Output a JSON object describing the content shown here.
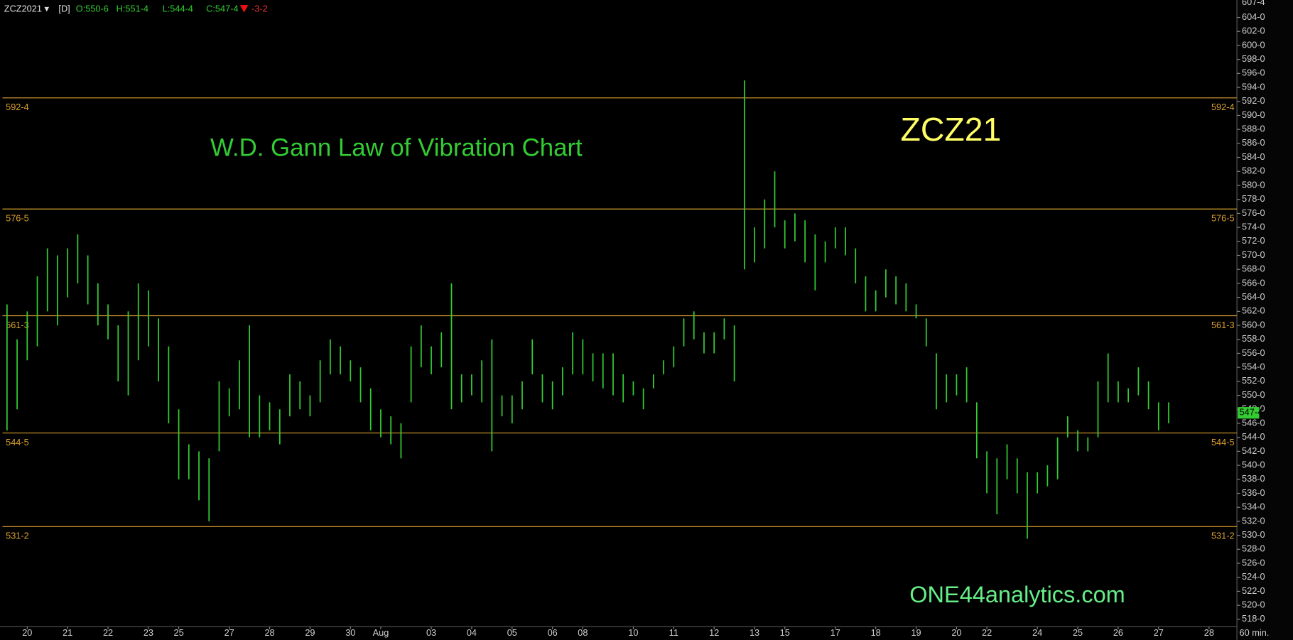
{
  "chart_data": {
    "type": "hlbar",
    "header": {
      "symbol": "ZCZ2021 ▾",
      "interval": "[D]",
      "open": "O:550-6",
      "high": "H:551-4",
      "low": "L:544-4",
      "close": "C:547-4",
      "change": "-3-2"
    },
    "title": "W.D. Gann Law of Vibration Chart",
    "symbol_label": "ZCZ21",
    "watermark": "ONE44analytics.com",
    "timeframe": "60 min.",
    "color": "#33cc33",
    "level_color": "#d9a030",
    "categories": [
      null,
      null,
      "20",
      null,
      null,
      null,
      "21",
      null,
      null,
      null,
      "22",
      null,
      null,
      null,
      "23",
      null,
      null,
      "25",
      null,
      null,
      null,
      null,
      "27",
      null,
      null,
      null,
      "28",
      null,
      null,
      null,
      "29",
      null,
      null,
      null,
      "30",
      null,
      null,
      "Aug",
      null,
      null,
      null,
      null,
      "03",
      null,
      null,
      null,
      "04",
      null,
      null,
      null,
      "05",
      null,
      null,
      null,
      "06",
      null,
      null,
      "08",
      null,
      null,
      null,
      null,
      "10",
      null,
      null,
      null,
      "11",
      null,
      null,
      null,
      "12",
      null,
      null,
      null,
      "13",
      null,
      null,
      "15",
      null,
      null,
      null,
      null,
      "17",
      null,
      null,
      null,
      "18",
      null,
      null,
      null,
      "19",
      null,
      null,
      null,
      "20",
      null,
      null,
      "22",
      null,
      null,
      null,
      null,
      "24",
      null,
      null,
      null,
      "25",
      null,
      null,
      null,
      "26",
      null,
      null,
      null,
      "27",
      null,
      null,
      null,
      null,
      "28"
    ],
    "high": [
      563,
      558,
      562,
      567,
      571,
      570,
      571,
      573,
      570,
      566,
      563,
      560,
      562,
      566,
      565,
      561,
      557,
      548,
      543,
      542,
      541,
      552,
      551,
      555,
      560,
      550,
      549,
      548,
      553,
      552,
      550,
      555,
      558,
      557,
      555,
      554,
      551,
      548,
      547,
      546,
      557,
      560,
      557,
      559,
      566,
      553,
      553,
      555,
      558,
      550,
      550,
      552,
      558,
      553,
      552,
      554,
      559,
      558,
      556,
      556,
      556,
      553,
      552,
      551,
      553,
      555,
      557,
      561,
      562,
      559,
      559,
      561,
      560,
      595,
      574,
      578,
      582,
      575,
      576,
      575,
      573,
      572,
      574,
      574,
      571,
      567,
      565,
      568,
      567,
      566,
      563,
      561,
      556,
      553,
      553,
      554,
      549,
      542,
      541,
      543,
      541,
      539,
      539,
      540,
      544,
      547,
      545,
      544,
      552,
      556,
      552,
      551,
      554,
      552,
      549,
      549,
      null,
      null,
      null,
      null
    ],
    "low": [
      545,
      548,
      555,
      557,
      562,
      560,
      564,
      566,
      563,
      560,
      558,
      552,
      550,
      555,
      557,
      552,
      546,
      538,
      538,
      535,
      532,
      542,
      547,
      548,
      544,
      544,
      545,
      543,
      547,
      548,
      547,
      549,
      553,
      553,
      552,
      549,
      545,
      544,
      543,
      541,
      549,
      554,
      553,
      554,
      548,
      549,
      550,
      549,
      542,
      547,
      546,
      548,
      553,
      549,
      548,
      550,
      553,
      553,
      552,
      551,
      550,
      549,
      550,
      548,
      551,
      553,
      554,
      557,
      558,
      556,
      556,
      558,
      552,
      568,
      569,
      571,
      574,
      571,
      572,
      569,
      565,
      569,
      571,
      570,
      566,
      562,
      562,
      564,
      563,
      562,
      561,
      557,
      548,
      549,
      550,
      549,
      541,
      536,
      533,
      538,
      536,
      529.5,
      536,
      537,
      538,
      544,
      542,
      542,
      544,
      549,
      549,
      549,
      550,
      548,
      545,
      546,
      null,
      null,
      null,
      null
    ],
    "levels": [
      {
        "value": 592.5,
        "label": "592-4"
      },
      {
        "value": 576.625,
        "label": "576-5"
      },
      {
        "value": 561.375,
        "label": "561-3"
      },
      {
        "value": 544.625,
        "label": "544-5"
      },
      {
        "value": 531.25,
        "label": "531-2"
      }
    ],
    "last_price": {
      "value": 547.5,
      "label": "547-4"
    },
    "ylim": [
      516.94,
      607.5
    ],
    "yticks": [
      {
        "value": 518,
        "label": "518-0"
      },
      {
        "value": 520,
        "label": "520-0"
      },
      {
        "value": 522,
        "label": "522-0"
      },
      {
        "value": 524,
        "label": "524-0"
      },
      {
        "value": 526,
        "label": "526-0"
      },
      {
        "value": 528,
        "label": "528-0"
      },
      {
        "value": 530,
        "label": "530-0"
      },
      {
        "value": 532,
        "label": "532-0"
      },
      {
        "value": 534,
        "label": "534-0"
      },
      {
        "value": 536,
        "label": "536-0"
      },
      {
        "value": 538,
        "label": "538-0"
      },
      {
        "value": 540,
        "label": "540-0"
      },
      {
        "value": 542,
        "label": "542-0"
      },
      {
        "value": 544,
        "label": "544-0"
      },
      {
        "value": 546,
        "label": "546-0"
      },
      {
        "value": 548,
        "label": "548-0"
      },
      {
        "value": 550,
        "label": "550-0"
      },
      {
        "value": 552,
        "label": "552-0"
      },
      {
        "value": 554,
        "label": "554-0"
      },
      {
        "value": 556,
        "label": "556-0"
      },
      {
        "value": 558,
        "label": "558-0"
      },
      {
        "value": 560,
        "label": "560-0"
      },
      {
        "value": 562,
        "label": "562-0"
      },
      {
        "value": 564,
        "label": "564-0"
      },
      {
        "value": 566,
        "label": "566-0"
      },
      {
        "value": 568,
        "label": "568-0"
      },
      {
        "value": 570,
        "label": "570-0"
      },
      {
        "value": 572,
        "label": "572-0"
      },
      {
        "value": 574,
        "label": "574-0"
      },
      {
        "value": 576,
        "label": "576-0"
      },
      {
        "value": 578,
        "label": "578-0"
      },
      {
        "value": 580,
        "label": "580-0"
      },
      {
        "value": 582,
        "label": "582-0"
      },
      {
        "value": 584,
        "label": "584-0"
      },
      {
        "value": 586,
        "label": "586-0"
      },
      {
        "value": 588,
        "label": "588-0"
      },
      {
        "value": 590,
        "label": "590-0"
      },
      {
        "value": 592,
        "label": "592-0"
      },
      {
        "value": 594,
        "label": "594-0"
      },
      {
        "value": 596,
        "label": "596-0"
      },
      {
        "value": 598,
        "label": "598-0"
      },
      {
        "value": 600,
        "label": "600-0"
      },
      {
        "value": 602,
        "label": "602-0"
      },
      {
        "value": 604,
        "label": "604-0"
      },
      {
        "value": 607.5,
        "label": "607-4"
      }
    ]
  }
}
